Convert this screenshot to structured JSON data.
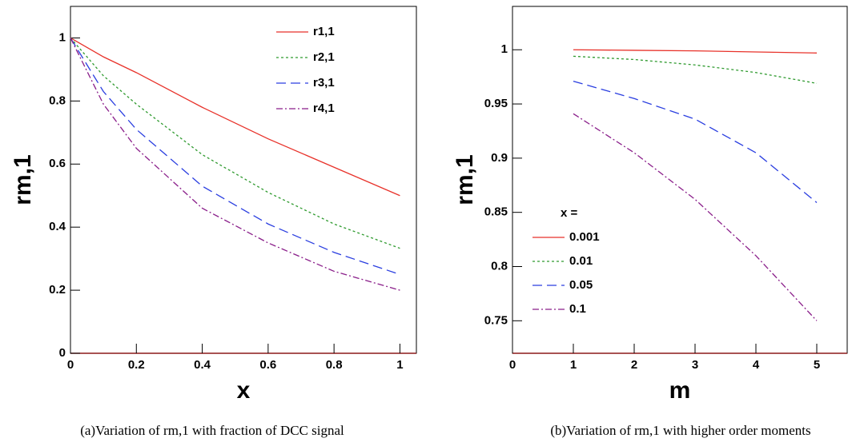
{
  "chart_data": [
    {
      "type": "line",
      "xlabel": "x",
      "ylabel": "rm,1",
      "caption": "(a)Variation of rm,1 with fraction of DCC signal",
      "x": [
        0,
        0.1,
        0.2,
        0.4,
        0.6,
        0.8,
        1
      ],
      "xlim": [
        0,
        1.05
      ],
      "xticks": [
        0,
        0.2,
        0.4,
        0.6,
        0.8,
        1
      ],
      "ylim": [
        0,
        1.1
      ],
      "yticks": [
        0,
        0.2,
        0.4,
        0.6,
        0.8,
        1
      ],
      "series": [
        {
          "name": "r1,1",
          "color": "#e8322a",
          "style": "solid",
          "values": [
            1,
            0.94,
            0.89,
            0.78,
            0.68,
            0.59,
            0.5
          ]
        },
        {
          "name": "r2,1",
          "color": "#2e9a2e",
          "style": "dotted",
          "values": [
            1,
            0.88,
            0.79,
            0.63,
            0.51,
            0.41,
            0.333
          ]
        },
        {
          "name": "r3,1",
          "color": "#2a3ee0",
          "style": "dashed",
          "values": [
            1,
            0.83,
            0.71,
            0.53,
            0.41,
            0.32,
            0.25
          ]
        },
        {
          "name": "r4,1",
          "color": "#8a1e8a",
          "style": "dashdot",
          "values": [
            1,
            0.79,
            0.65,
            0.46,
            0.35,
            0.26,
            0.2
          ]
        }
      ]
    },
    {
      "type": "line",
      "xlabel": "m",
      "ylabel": "rm,1",
      "legend_title": "x =",
      "caption": "(b)Variation of rm,1 with higher order moments",
      "x": [
        1,
        2,
        3,
        4,
        5
      ],
      "xlim": [
        0,
        5.5
      ],
      "xticks": [
        0,
        1,
        2,
        3,
        4,
        5
      ],
      "ylim": [
        0.72,
        1.04
      ],
      "yticks": [
        0.75,
        0.8,
        0.85,
        0.9,
        0.95,
        1
      ],
      "series": [
        {
          "name": "0.001",
          "color": "#e8322a",
          "style": "solid",
          "values": [
            1,
            0.9995,
            0.999,
            0.998,
            0.997
          ]
        },
        {
          "name": "0.01",
          "color": "#2e9a2e",
          "style": "dotted",
          "values": [
            0.994,
            0.991,
            0.986,
            0.979,
            0.969
          ]
        },
        {
          "name": "0.05",
          "color": "#2a3ee0",
          "style": "dashed",
          "values": [
            0.971,
            0.955,
            0.936,
            0.905,
            0.859
          ]
        },
        {
          "name": "0.1",
          "color": "#8a1e8a",
          "style": "dashdot",
          "values": [
            0.941,
            0.905,
            0.862,
            0.81,
            0.75
          ]
        }
      ]
    }
  ]
}
